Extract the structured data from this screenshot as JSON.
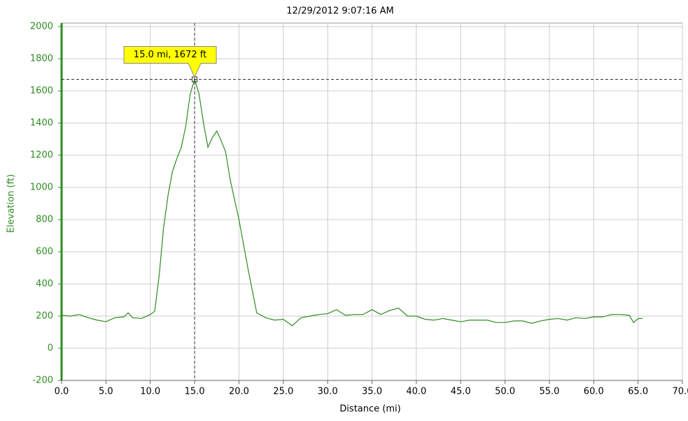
{
  "chart_data": {
    "type": "line",
    "title": "12/29/2012 9:07:16 AM",
    "x_label": "Distance (mi)",
    "y_label": "Elevation (ft)",
    "x": [
      0,
      1,
      2,
      3,
      4,
      5,
      6,
      7,
      7.5,
      8,
      9,
      10,
      10.5,
      11,
      11.5,
      12,
      12.5,
      13,
      13.5,
      14,
      14.5,
      15,
      15.5,
      16,
      16.5,
      17,
      17.5,
      18,
      18.5,
      19,
      20,
      21,
      22,
      23,
      24,
      25,
      26,
      27,
      28,
      29,
      30,
      31,
      32,
      33,
      34,
      35,
      36,
      37,
      38,
      39,
      40,
      41,
      42,
      43,
      44,
      45,
      46,
      47,
      48,
      49,
      50,
      51,
      52,
      53,
      54,
      55,
      56,
      57,
      58,
      59,
      60,
      61,
      62,
      63,
      64,
      64.5,
      65,
      65.5
    ],
    "series": [
      {
        "name": "Elevation",
        "color": "#2e8b22",
        "values": [
          205,
          200,
          210,
          190,
          175,
          165,
          190,
          195,
          220,
          190,
          185,
          210,
          230,
          450,
          750,
          950,
          1100,
          1180,
          1250,
          1380,
          1580,
          1672,
          1580,
          1400,
          1250,
          1310,
          1350,
          1290,
          1220,
          1050,
          800,
          500,
          220,
          190,
          175,
          180,
          140,
          190,
          200,
          210,
          215,
          240,
          205,
          210,
          210,
          240,
          210,
          235,
          250,
          200,
          200,
          180,
          175,
          185,
          175,
          165,
          175,
          175,
          175,
          160,
          160,
          170,
          170,
          155,
          170,
          180,
          185,
          175,
          190,
          185,
          195,
          195,
          210,
          210,
          205,
          160,
          185,
          185
        ]
      }
    ],
    "xlim": [
      0,
      70
    ],
    "ylim": [
      -200,
      2000
    ],
    "xticks": [
      {
        "value": 0,
        "label": "0.0"
      },
      {
        "value": 5,
        "label": "5.0"
      },
      {
        "value": 10,
        "label": "10.0"
      },
      {
        "value": 15,
        "label": "15.0"
      },
      {
        "value": 20,
        "label": "20.0"
      },
      {
        "value": 25,
        "label": "25.0"
      },
      {
        "value": 30,
        "label": "30.0"
      },
      {
        "value": 35,
        "label": "35.0"
      },
      {
        "value": 40,
        "label": "40.0"
      },
      {
        "value": 45,
        "label": "45.0"
      },
      {
        "value": 50,
        "label": "50.0"
      },
      {
        "value": 55,
        "label": "55.0"
      },
      {
        "value": 60,
        "label": "60.0"
      },
      {
        "value": 65,
        "label": "65.0"
      },
      {
        "value": 70,
        "label": "70.0"
      }
    ],
    "yticks": [
      -200,
      0,
      200,
      400,
      600,
      800,
      1000,
      1200,
      1400,
      1600,
      1800,
      2000
    ],
    "grid": true,
    "annotation": {
      "text": "15.0 mi, 1672 ft",
      "x": 15,
      "y": 1672
    }
  }
}
